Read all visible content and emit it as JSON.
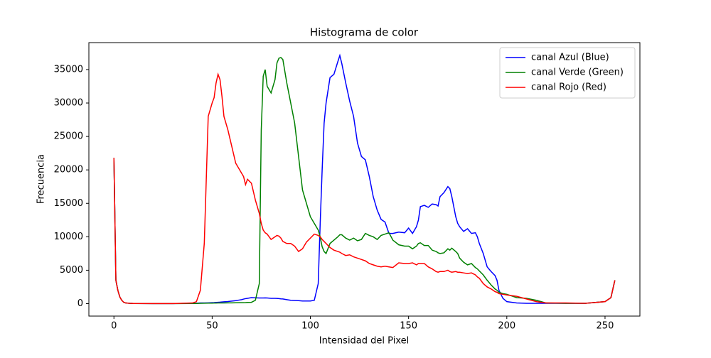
{
  "chart_data": {
    "type": "line",
    "title": "Histograma de color",
    "x_label": "Intensidad del Pixel",
    "y_label": "Frecuencia",
    "x": [
      0,
      1,
      2,
      3,
      4,
      5,
      6,
      8,
      10,
      20,
      30,
      40,
      42,
      44,
      46,
      48,
      50,
      51,
      52,
      53,
      54,
      55,
      56,
      58,
      60,
      62,
      64,
      65,
      66,
      67,
      68,
      70,
      72,
      74,
      75,
      76,
      77,
      78,
      80,
      82,
      83,
      84,
      85,
      86,
      88,
      90,
      92,
      94,
      96,
      98,
      100,
      102,
      104,
      105,
      106,
      107,
      108,
      110,
      112,
      114,
      115,
      116,
      118,
      120,
      122,
      124,
      126,
      128,
      130,
      132,
      134,
      136,
      138,
      140,
      142,
      145,
      148,
      150,
      152,
      154,
      155,
      156,
      158,
      160,
      162,
      164,
      165,
      166,
      168,
      170,
      171,
      172,
      174,
      175,
      176,
      178,
      180,
      182,
      184,
      185,
      186,
      188,
      190,
      192,
      194,
      195,
      196,
      198,
      200,
      205,
      210,
      215,
      220,
      230,
      240,
      250,
      253,
      255
    ],
    "series": [
      {
        "name": "canal Azul (Blue)",
        "color": "#0000ff",
        "values": [
          21800,
          3500,
          2000,
          1000,
          500,
          200,
          100,
          50,
          20,
          10,
          10,
          50,
          60,
          100,
          100,
          120,
          150,
          160,
          180,
          200,
          220,
          250,
          280,
          320,
          380,
          450,
          550,
          600,
          680,
          750,
          800,
          900,
          870,
          850,
          850,
          850,
          860,
          850,
          800,
          800,
          780,
          750,
          720,
          700,
          600,
          500,
          480,
          450,
          400,
          400,
          400,
          500,
          3000,
          12000,
          20000,
          27000,
          30000,
          33800,
          34300,
          36200,
          37100,
          35900,
          33000,
          30300,
          28000,
          24000,
          22000,
          21500,
          19000,
          16000,
          14000,
          12600,
          12200,
          10500,
          10500,
          10700,
          10600,
          11300,
          10500,
          11500,
          12500,
          14500,
          14700,
          14400,
          14900,
          14800,
          14600,
          16000,
          16600,
          17500,
          17200,
          16000,
          13000,
          12000,
          11500,
          10800,
          11200,
          10500,
          10600,
          10000,
          9000,
          7500,
          5500,
          4800,
          4200,
          3500,
          2000,
          800,
          300,
          100,
          50,
          50,
          50,
          50,
          50,
          300,
          900,
          3500
        ]
      },
      {
        "name": "canal Verde (Green)",
        "color": "#008000",
        "values": [
          21800,
          3500,
          2000,
          1000,
          500,
          200,
          100,
          50,
          20,
          10,
          10,
          20,
          30,
          50,
          60,
          80,
          80,
          90,
          90,
          100,
          100,
          100,
          110,
          120,
          120,
          130,
          140,
          150,
          150,
          160,
          180,
          200,
          500,
          3000,
          26000,
          34000,
          35000,
          32500,
          31500,
          33500,
          36000,
          36700,
          36800,
          36500,
          33000,
          30000,
          27000,
          22000,
          17000,
          15000,
          13000,
          12000,
          11000,
          10000,
          8500,
          7800,
          7500,
          9000,
          9500,
          10000,
          10300,
          10300,
          9800,
          9500,
          9800,
          9400,
          9600,
          10500,
          10200,
          10000,
          9600,
          10200,
          10400,
          10600,
          9500,
          8800,
          8600,
          8600,
          8200,
          8600,
          9000,
          9100,
          8700,
          8700,
          8000,
          7800,
          7600,
          7500,
          7600,
          8200,
          8000,
          8300,
          7800,
          7500,
          6800,
          6200,
          5800,
          6000,
          5400,
          5200,
          4900,
          4300,
          3500,
          2800,
          2200,
          2000,
          1700,
          1500,
          1400,
          900,
          800,
          500,
          100,
          50,
          50,
          300,
          900,
          3500
        ]
      },
      {
        "name": "canal Rojo (Red)",
        "color": "#ff0000",
        "values": [
          21800,
          3500,
          2000,
          1000,
          500,
          200,
          100,
          50,
          20,
          10,
          10,
          100,
          300,
          2000,
          9000,
          28000,
          30000,
          30800,
          33000,
          34300,
          33500,
          31000,
          28000,
          26000,
          23500,
          21000,
          20000,
          19500,
          19000,
          17800,
          18600,
          18000,
          15500,
          13500,
          12000,
          11000,
          10600,
          10400,
          9600,
          10000,
          10200,
          10100,
          9800,
          9300,
          9000,
          9000,
          8600,
          7800,
          8200,
          9200,
          9800,
          10400,
          10200,
          10000,
          9600,
          9300,
          9000,
          8400,
          8000,
          7800,
          7700,
          7500,
          7200,
          7300,
          7000,
          6800,
          6600,
          6400,
          6000,
          5800,
          5600,
          5500,
          5600,
          5500,
          5400,
          6100,
          6000,
          6000,
          6100,
          5800,
          6000,
          6000,
          6000,
          5500,
          5200,
          4800,
          4700,
          4800,
          4800,
          5000,
          4800,
          4700,
          4800,
          4700,
          4700,
          4600,
          4500,
          4600,
          4300,
          4000,
          3800,
          3000,
          2500,
          2200,
          1800,
          1700,
          1500,
          1400,
          1300,
          1100,
          700,
          300,
          100,
          100,
          50,
          300,
          900,
          3500
        ]
      }
    ],
    "xlim": [
      -12.75,
      267.75
    ],
    "ylim": [
      -1860,
      39030
    ],
    "xticks": [
      0,
      50,
      100,
      150,
      200,
      250
    ],
    "yticks": [
      0,
      5000,
      10000,
      15000,
      20000,
      25000,
      30000,
      35000
    ],
    "legend": "upper right"
  }
}
